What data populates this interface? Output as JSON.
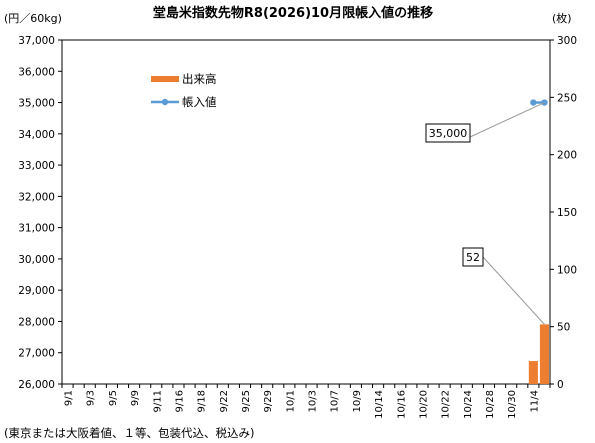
{
  "chart_data": {
    "type": "bar+line",
    "title": "堂島米指数先物R8(2026)10月限帳入値の推移",
    "left_unit": "(円／60kg)",
    "right_unit": "(枚)",
    "left_axis": {
      "min": 26000,
      "max": 37000,
      "step": 1000
    },
    "right_axis": {
      "min": 0,
      "max": 300,
      "step": 50
    },
    "left_tick_labels": [
      "26,000",
      "27,000",
      "28,000",
      "29,000",
      "30,000",
      "31,000",
      "32,000",
      "33,000",
      "34,000",
      "35,000",
      "36,000",
      "37,000"
    ],
    "right_tick_labels": [
      "0",
      "50",
      "100",
      "150",
      "200",
      "250",
      "300"
    ],
    "categories": [
      "9/1",
      "9/2",
      "9/3",
      "9/4",
      "9/5",
      "9/8",
      "9/9",
      "9/10",
      "9/11",
      "9/12",
      "9/16",
      "9/17",
      "9/18",
      "9/19",
      "9/22",
      "9/24",
      "9/25",
      "9/26",
      "9/29",
      "9/30",
      "10/1",
      "10/2",
      "10/3",
      "10/6",
      "10/7",
      "10/8",
      "10/9",
      "10/10",
      "10/14",
      "10/15",
      "10/16",
      "10/17",
      "10/20",
      "10/21",
      "10/22",
      "10/23",
      "10/24",
      "10/27",
      "10/28",
      "10/29",
      "10/30",
      "10/31",
      "11/4",
      "11/5"
    ],
    "x_tick_labels": [
      "9/1",
      "9/3",
      "9/5",
      "9/9",
      "9/11",
      "9/16",
      "9/18",
      "9/22",
      "9/25",
      "9/29",
      "10/1",
      "10/3",
      "10/7",
      "10/9",
      "10/14",
      "10/16",
      "10/20",
      "10/22",
      "10/24",
      "10/28",
      "10/30",
      "11/4"
    ],
    "series": [
      {
        "name": "出来高",
        "kind": "bar",
        "axis": "right",
        "color": "#ED7D31",
        "points": [
          {
            "x": "11/4",
            "y": 20
          },
          {
            "x": "11/5",
            "y": 52
          }
        ]
      },
      {
        "name": "帳入値",
        "kind": "line",
        "axis": "left",
        "color": "#5B9BD5",
        "points": [
          {
            "x": "11/4",
            "y": 35000
          },
          {
            "x": "11/5",
            "y": 35000
          }
        ]
      }
    ],
    "legend": {
      "position": "upper-left-inside",
      "entries": [
        "出来高",
        "帳入値"
      ]
    },
    "annotations": [
      {
        "text": "35,000",
        "x": "11/5",
        "series": "帳入値"
      },
      {
        "text": "52",
        "x": "11/5",
        "series": "出来高"
      }
    ],
    "grid": false,
    "footnote": "(東京または大阪着値、１等、包装代込、税込み)"
  }
}
